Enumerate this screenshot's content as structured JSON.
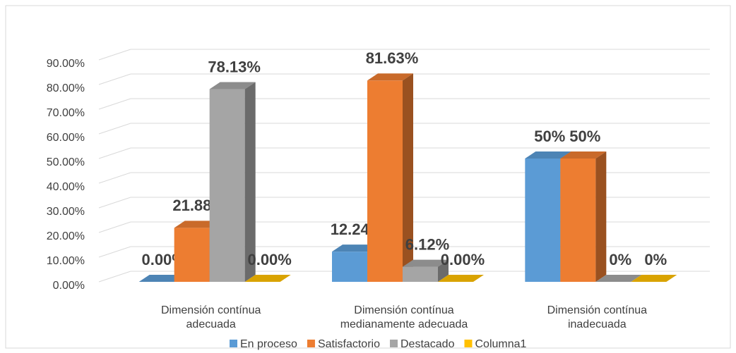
{
  "chart_data": {
    "type": "bar3d",
    "categories": [
      "Dimensión contínua adecuada",
      "Dimensión contínua medianamente adecuada",
      "Dimensión contínua inadecuada"
    ],
    "series": [
      {
        "name": "En proceso",
        "color": "#5b9bd5",
        "values": [
          0,
          12.24,
          50
        ],
        "value_labels": [
          "0.00%",
          "12.24%",
          "50%"
        ]
      },
      {
        "name": "Satisfactorio",
        "color": "#ed7d31",
        "values": [
          21.88,
          81.63,
          50
        ],
        "value_labels": [
          "21.88%",
          "81.63%",
          "50%"
        ]
      },
      {
        "name": "Destacado",
        "color": "#a5a5a5",
        "values": [
          78.13,
          6.12,
          0
        ],
        "value_labels": [
          "78.13%",
          "6.12%",
          "0%"
        ]
      },
      {
        "name": "Columna1",
        "color": "#ffc000",
        "values": [
          0,
          0,
          0
        ],
        "value_labels": [
          "0.00%",
          "0.00%",
          "0%"
        ]
      }
    ],
    "ylim": [
      0,
      90
    ],
    "yticks": [
      {
        "value": 0,
        "label": "0.00%"
      },
      {
        "value": 10,
        "label": "10.00%"
      },
      {
        "value": 20,
        "label": "20.00%"
      },
      {
        "value": 30,
        "label": "30.00%"
      },
      {
        "value": 40,
        "label": "40.00%"
      },
      {
        "value": 50,
        "label": "50.00%"
      },
      {
        "value": 60,
        "label": "60.00%"
      },
      {
        "value": 70,
        "label": "70.00%"
      },
      {
        "value": 80,
        "label": "80.00%"
      },
      {
        "value": 90,
        "label": "90.00%"
      }
    ],
    "grid": true,
    "legend": "bottom"
  }
}
